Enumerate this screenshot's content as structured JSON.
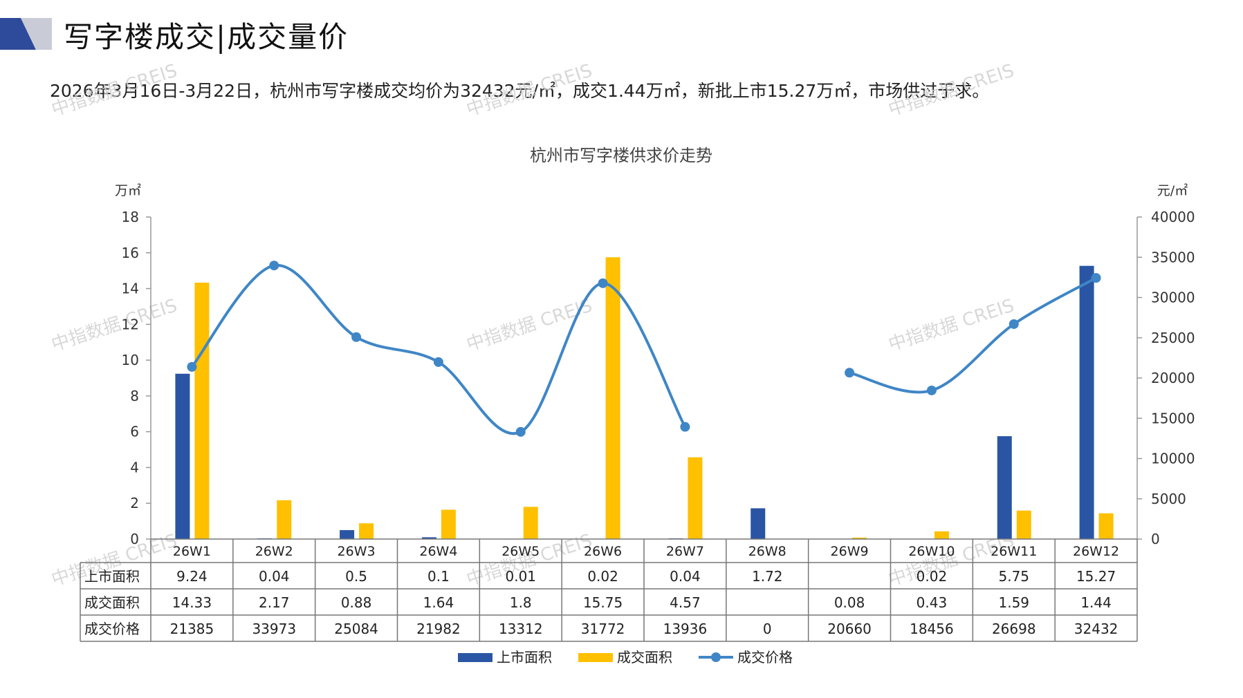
{
  "header": {
    "title": "写字楼成交|成交量价",
    "summary": "2026年3月16日-3月22日，杭州市写字楼成交均价为32432元/㎡，成交1.44万㎡，新批上市15.27万㎡，市场供过于求。"
  },
  "watermark": "中指数据 CREIS",
  "colors": {
    "listed": "#2a55a4",
    "transacted": "#ffc000",
    "price": "#3f86c6",
    "logo_dark": "#2e4a9a",
    "logo_light": "#c9ccd6"
  },
  "chart_data": {
    "type": "bar",
    "title": "杭州市写字楼供求价走势",
    "y_left_unit": "万㎡",
    "y_right_unit": "元/㎡",
    "y_left_range": [
      0,
      18
    ],
    "y_left_ticks": [
      "0",
      "2",
      "4",
      "6",
      "8",
      "10",
      "12",
      "14",
      "16",
      "18"
    ],
    "y_right_range": [
      0,
      40000
    ],
    "y_right_ticks": [
      "0",
      "5000",
      "10000",
      "15000",
      "20000",
      "25000",
      "30000",
      "35000",
      "40000"
    ],
    "categories": [
      "26W1",
      "26W2",
      "26W3",
      "26W4",
      "26W5",
      "26W6",
      "26W7",
      "26W8",
      "26W9",
      "26W10",
      "26W11",
      "26W12"
    ],
    "series": [
      {
        "name": "上市面积",
        "kind": "bar",
        "axis": "left",
        "values": [
          9.24,
          0.04,
          0.5,
          0.1,
          0.01,
          0.02,
          0.04,
          1.72,
          null,
          0.02,
          5.75,
          15.27
        ],
        "labels": [
          "9.24",
          "0.04",
          "0.5",
          "0.1",
          "0.01",
          "0.02",
          "0.04",
          "1.72",
          "",
          "0.02",
          "5.75",
          "15.27"
        ]
      },
      {
        "name": "成交面积",
        "kind": "bar",
        "axis": "left",
        "values": [
          14.33,
          2.17,
          0.88,
          1.64,
          1.8,
          15.75,
          4.57,
          null,
          0.08,
          0.43,
          1.59,
          1.44
        ],
        "labels": [
          "14.33",
          "2.17",
          "0.88",
          "1.64",
          "1.8",
          "15.75",
          "4.57",
          "",
          "0.08",
          "0.43",
          "1.59",
          "1.44"
        ]
      },
      {
        "name": "成交价格",
        "kind": "line",
        "axis": "right",
        "values": [
          21385,
          33973,
          25084,
          21982,
          13312,
          31772,
          13936,
          0,
          20660,
          18456,
          26698,
          32432
        ],
        "labels": [
          "21385",
          "33973",
          "25084",
          "21982",
          "13312",
          "31772",
          "13936",
          "0",
          "20660",
          "18456",
          "26698",
          "32432"
        ]
      }
    ],
    "legend_position": "bottom"
  }
}
